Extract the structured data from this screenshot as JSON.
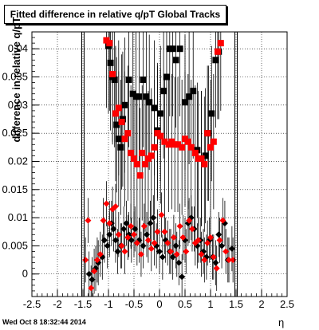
{
  "footer_text": "Wed Oct  8 18:32:44 2014",
  "chart_data": {
    "type": "scatter",
    "title": "Fitted difference in relative q/pT  Global Tracks",
    "xlabel": "η",
    "ylabel": "difference in relative q/pT",
    "xlim": [
      -2.5,
      2.5
    ],
    "ylim": [
      -0.004,
      0.043
    ],
    "x_ticks": [
      "-2.5",
      "-2",
      "-1.5",
      "-1",
      "-0.5",
      "0",
      "0.5",
      "1",
      "1.5",
      "2",
      "2.5"
    ],
    "y_ticks": [
      "0",
      "0.005",
      "0.01",
      "0.015",
      "0.02",
      "0.025",
      "0.03",
      "0.035",
      "0.04"
    ],
    "grid": true,
    "vertical_lines": [
      -1.5,
      1.5
    ],
    "series": [
      {
        "color": "#000000",
        "points": [
          {
            "x": -1.38,
            "y": 0.0,
            "e": 0.004
          },
          {
            "x": -1.32,
            "y": -0.001,
            "e": 0.004
          },
          {
            "x": -1.25,
            "y": 0.001,
            "e": 0.004
          },
          {
            "x": -1.2,
            "y": 0.002,
            "e": 0.004
          },
          {
            "x": -1.12,
            "y": 0.003,
            "e": 0.004
          },
          {
            "x": -1.08,
            "y": 0.006,
            "e": 0.004
          },
          {
            "x": -1.02,
            "y": 0.005,
            "e": 0.004
          },
          {
            "x": -0.98,
            "y": 0.007,
            "e": 0.004
          },
          {
            "x": -0.94,
            "y": 0.009,
            "e": 0.004
          },
          {
            "x": -0.9,
            "y": 0.008,
            "e": 0.004
          },
          {
            "x": -0.86,
            "y": 0.006,
            "e": 0.004
          },
          {
            "x": -0.82,
            "y": 0.004,
            "e": 0.004
          },
          {
            "x": -0.76,
            "y": 0.005,
            "e": 0.004
          },
          {
            "x": -0.7,
            "y": 0.008,
            "e": 0.004
          },
          {
            "x": -0.65,
            "y": 0.009,
            "e": 0.004
          },
          {
            "x": -0.6,
            "y": 0.007,
            "e": 0.004
          },
          {
            "x": -0.55,
            "y": 0.006,
            "e": 0.004
          },
          {
            "x": -0.48,
            "y": 0.008,
            "e": 0.004
          },
          {
            "x": -0.4,
            "y": 0.006,
            "e": 0.004
          },
          {
            "x": -0.32,
            "y": 0.005,
            "e": 0.004
          },
          {
            "x": -0.25,
            "y": 0.007,
            "e": 0.004
          },
          {
            "x": -0.18,
            "y": 0.009,
            "e": 0.004
          },
          {
            "x": -0.12,
            "y": 0.01,
            "e": 0.004
          },
          {
            "x": -0.06,
            "y": 0.005,
            "e": 0.004
          },
          {
            "x": 0.0,
            "y": 0.004,
            "e": 0.004
          },
          {
            "x": 0.06,
            "y": 0.003,
            "e": 0.004
          },
          {
            "x": 0.12,
            "y": 0.006,
            "e": 0.004
          },
          {
            "x": 0.2,
            "y": 0.004,
            "e": 0.004
          },
          {
            "x": 0.26,
            "y": 0.003,
            "e": 0.004
          },
          {
            "x": 0.32,
            "y": 0.005,
            "e": 0.004
          },
          {
            "x": 0.38,
            "y": 0.002,
            "e": 0.004
          },
          {
            "x": 0.44,
            "y": -0.0005,
            "e": 0.004
          },
          {
            "x": 0.5,
            "y": 0.006,
            "e": 0.004
          },
          {
            "x": 0.56,
            "y": 0.009,
            "e": 0.004
          },
          {
            "x": 0.62,
            "y": 0.01,
            "e": 0.004
          },
          {
            "x": 0.68,
            "y": 0.008,
            "e": 0.004
          },
          {
            "x": 0.74,
            "y": 0.005,
            "e": 0.004
          },
          {
            "x": 0.8,
            "y": 0.006,
            "e": 0.004
          },
          {
            "x": 0.86,
            "y": 0.004,
            "e": 0.004
          },
          {
            "x": 0.92,
            "y": 0.003,
            "e": 0.004
          },
          {
            "x": 0.98,
            "y": 0.006,
            "e": 0.004
          },
          {
            "x": 1.04,
            "y": 0.003,
            "e": 0.004
          },
          {
            "x": 1.1,
            "y": 0.002,
            "e": 0.004
          },
          {
            "x": 1.16,
            "y": 0.007,
            "e": 0.004
          },
          {
            "x": 1.22,
            "y": 0.005,
            "e": 0.004
          },
          {
            "x": 1.28,
            "y": 0.009,
            "e": 0.004
          },
          {
            "x": 1.34,
            "y": 0.0025,
            "e": 0.004
          },
          {
            "x": 1.42,
            "y": 0.0045,
            "e": 0.004
          }
        ]
      },
      {
        "color": "#ff0000",
        "points": [
          {
            "x": -1.45,
            "y": 0.0025,
            "e": 0.004
          },
          {
            "x": -1.4,
            "y": 0.0095,
            "e": 0.004
          },
          {
            "x": -1.34,
            "y": -0.0025,
            "e": 0.004
          },
          {
            "x": -1.28,
            "y": 0.0005,
            "e": 0.004
          },
          {
            "x": -1.22,
            "y": 0.0025,
            "e": 0.004
          },
          {
            "x": -1.16,
            "y": 0.0035,
            "e": 0.004
          },
          {
            "x": -1.1,
            "y": 0.0095,
            "e": 0.004
          },
          {
            "x": -1.04,
            "y": 0.0125,
            "e": 0.004
          },
          {
            "x": -0.98,
            "y": 0.009,
            "e": 0.004
          },
          {
            "x": -0.92,
            "y": 0.0115,
            "e": 0.004
          },
          {
            "x": -0.86,
            "y": 0.012,
            "e": 0.004
          },
          {
            "x": -0.8,
            "y": 0.007,
            "e": 0.004
          },
          {
            "x": -0.74,
            "y": 0.005,
            "e": 0.004
          },
          {
            "x": -0.68,
            "y": 0.004,
            "e": 0.004
          },
          {
            "x": -0.62,
            "y": 0.0065,
            "e": 0.004
          },
          {
            "x": -0.56,
            "y": 0.0085,
            "e": 0.004
          },
          {
            "x": -0.5,
            "y": 0.007,
            "e": 0.004
          },
          {
            "x": -0.44,
            "y": 0.0055,
            "e": 0.004
          },
          {
            "x": -0.36,
            "y": 0.0035,
            "e": 0.004
          },
          {
            "x": -0.3,
            "y": 0.0085,
            "e": 0.004
          },
          {
            "x": -0.22,
            "y": 0.006,
            "e": 0.004
          },
          {
            "x": -0.16,
            "y": 0.0045,
            "e": 0.004
          },
          {
            "x": -0.1,
            "y": 0.0055,
            "e": 0.004
          },
          {
            "x": -0.04,
            "y": 0.0075,
            "e": 0.004
          },
          {
            "x": 0.04,
            "y": 0.0105,
            "e": 0.004
          },
          {
            "x": 0.1,
            "y": 0.0075,
            "e": 0.004
          },
          {
            "x": 0.16,
            "y": 0.0055,
            "e": 0.004
          },
          {
            "x": 0.22,
            "y": 0.004,
            "e": 0.004
          },
          {
            "x": 0.28,
            "y": 0.0065,
            "e": 0.004
          },
          {
            "x": 0.34,
            "y": 0.0035,
            "e": 0.004
          },
          {
            "x": 0.4,
            "y": 0.0085,
            "e": 0.004
          },
          {
            "x": 0.46,
            "y": 0.0065,
            "e": 0.004
          },
          {
            "x": 0.52,
            "y": 0.004,
            "e": 0.004
          },
          {
            "x": 0.58,
            "y": 0.0095,
            "e": 0.004
          },
          {
            "x": 0.64,
            "y": 0.008,
            "e": 0.004
          },
          {
            "x": 0.7,
            "y": 0.0055,
            "e": 0.004
          },
          {
            "x": 0.76,
            "y": 0.006,
            "e": 0.004
          },
          {
            "x": 0.82,
            "y": 0.0035,
            "e": 0.004
          },
          {
            "x": 0.88,
            "y": 0.0025,
            "e": 0.004
          },
          {
            "x": 0.94,
            "y": 0.0055,
            "e": 0.004
          },
          {
            "x": 1.0,
            "y": 0.0065,
            "e": 0.004
          },
          {
            "x": 1.06,
            "y": 0.003,
            "e": 0.004
          },
          {
            "x": 1.12,
            "y": 0.001,
            "e": 0.004
          },
          {
            "x": 1.18,
            "y": 0.006,
            "e": 0.004
          },
          {
            "x": 1.24,
            "y": 0.0095,
            "e": 0.004
          },
          {
            "x": 1.3,
            "y": 0.004,
            "e": 0.004
          },
          {
            "x": 1.36,
            "y": 0.0025,
            "e": 0.004
          },
          {
            "x": 1.44,
            "y": 0.0025,
            "e": 0.004
          }
        ]
      }
    ],
    "extra_squares": [
      {
        "series": 0,
        "points": [
          {
            "x": -1.0,
            "y": 0.0405,
            "e": 0.012
          },
          {
            "x": -0.96,
            "y": 0.0375,
            "e": 0.012
          },
          {
            "x": -0.92,
            "y": 0.035,
            "e": 0.012
          },
          {
            "x": -0.88,
            "y": 0.0345,
            "e": 0.012
          },
          {
            "x": -0.84,
            "y": 0.0265,
            "e": 0.012
          },
          {
            "x": -0.8,
            "y": 0.024,
            "e": 0.012
          },
          {
            "x": -0.76,
            "y": 0.0225,
            "e": 0.012
          },
          {
            "x": -0.72,
            "y": 0.0275,
            "e": 0.012
          },
          {
            "x": -0.68,
            "y": 0.03,
            "e": 0.012
          },
          {
            "x": -0.6,
            "y": 0.0345,
            "e": 0.012
          },
          {
            "x": -0.52,
            "y": 0.032,
            "e": 0.012
          },
          {
            "x": -0.46,
            "y": 0.0315,
            "e": 0.012
          },
          {
            "x": -0.4,
            "y": 0.0315,
            "e": 0.012
          },
          {
            "x": -0.32,
            "y": 0.0345,
            "e": 0.012
          },
          {
            "x": -0.26,
            "y": 0.0315,
            "e": 0.012
          },
          {
            "x": -0.2,
            "y": 0.0305,
            "e": 0.012
          },
          {
            "x": -0.1,
            "y": 0.0295,
            "e": 0.012
          },
          {
            "x": -0.04,
            "y": 0.0255,
            "e": 0.012
          },
          {
            "x": 0.02,
            "y": 0.0285,
            "e": 0.012
          },
          {
            "x": 0.08,
            "y": 0.0325,
            "e": 0.012
          },
          {
            "x": 0.14,
            "y": 0.035,
            "e": 0.012
          },
          {
            "x": 0.2,
            "y": 0.04,
            "e": 0.012
          },
          {
            "x": 0.26,
            "y": 0.04,
            "e": 0.012
          },
          {
            "x": 0.32,
            "y": 0.038,
            "e": 0.012
          },
          {
            "x": 0.4,
            "y": 0.04,
            "e": 0.012
          },
          {
            "x": 0.5,
            "y": 0.0305,
            "e": 0.012
          },
          {
            "x": 0.58,
            "y": 0.0315,
            "e": 0.012
          },
          {
            "x": 0.66,
            "y": 0.0325,
            "e": 0.012
          },
          {
            "x": 0.74,
            "y": 0.022,
            "e": 0.012
          },
          {
            "x": 0.82,
            "y": 0.0205,
            "e": 0.012
          },
          {
            "x": 0.9,
            "y": 0.021,
            "e": 0.012
          },
          {
            "x": 0.96,
            "y": 0.025,
            "e": 0.012
          },
          {
            "x": 1.02,
            "y": 0.0285,
            "e": 0.012
          },
          {
            "x": 1.1,
            "y": 0.038,
            "e": 0.012
          },
          {
            "x": 1.16,
            "y": 0.0395,
            "e": 0.012
          }
        ]
      },
      {
        "series": 1,
        "points": [
          {
            "x": -1.04,
            "y": 0.0415,
            "e": 0.012
          },
          {
            "x": -0.98,
            "y": 0.041,
            "e": 0.012
          },
          {
            "x": -0.92,
            "y": 0.0355,
            "e": 0.012
          },
          {
            "x": -0.86,
            "y": 0.0285,
            "e": 0.012
          },
          {
            "x": -0.8,
            "y": 0.0295,
            "e": 0.012
          },
          {
            "x": -0.74,
            "y": 0.027,
            "e": 0.012
          },
          {
            "x": -0.68,
            "y": 0.024,
            "e": 0.012
          },
          {
            "x": -0.62,
            "y": 0.025,
            "e": 0.012
          },
          {
            "x": -0.56,
            "y": 0.0215,
            "e": 0.012
          },
          {
            "x": -0.5,
            "y": 0.0205,
            "e": 0.012
          },
          {
            "x": -0.44,
            "y": 0.0195,
            "e": 0.012
          },
          {
            "x": -0.38,
            "y": 0.0175,
            "e": 0.012
          },
          {
            "x": -0.34,
            "y": 0.0215,
            "e": 0.012
          },
          {
            "x": -0.28,
            "y": 0.0195,
            "e": 0.012
          },
          {
            "x": -0.22,
            "y": 0.0205,
            "e": 0.012
          },
          {
            "x": -0.16,
            "y": 0.021,
            "e": 0.012
          },
          {
            "x": -0.1,
            "y": 0.0225,
            "e": 0.012
          },
          {
            "x": -0.04,
            "y": 0.025,
            "e": 0.012
          },
          {
            "x": 0.02,
            "y": 0.0245,
            "e": 0.012
          },
          {
            "x": 0.1,
            "y": 0.0235,
            "e": 0.012
          },
          {
            "x": 0.18,
            "y": 0.023,
            "e": 0.012
          },
          {
            "x": 0.24,
            "y": 0.0235,
            "e": 0.012
          },
          {
            "x": 0.3,
            "y": 0.023,
            "e": 0.012
          },
          {
            "x": 0.36,
            "y": 0.023,
            "e": 0.012
          },
          {
            "x": 0.44,
            "y": 0.0225,
            "e": 0.012
          },
          {
            "x": 0.5,
            "y": 0.024,
            "e": 0.012
          },
          {
            "x": 0.56,
            "y": 0.0235,
            "e": 0.012
          },
          {
            "x": 0.62,
            "y": 0.0225,
            "e": 0.012
          },
          {
            "x": 0.7,
            "y": 0.0215,
            "e": 0.012
          },
          {
            "x": 0.76,
            "y": 0.0205,
            "e": 0.012
          },
          {
            "x": 0.82,
            "y": 0.0205,
            "e": 0.012
          },
          {
            "x": 0.88,
            "y": 0.0195,
            "e": 0.012
          },
          {
            "x": 0.94,
            "y": 0.025,
            "e": 0.012
          },
          {
            "x": 1.0,
            "y": 0.0225,
            "e": 0.012
          },
          {
            "x": 1.06,
            "y": 0.0235,
            "e": 0.012
          },
          {
            "x": 1.14,
            "y": 0.0395,
            "e": 0.012
          },
          {
            "x": 1.2,
            "y": 0.041,
            "e": 0.012
          }
        ]
      }
    ]
  }
}
